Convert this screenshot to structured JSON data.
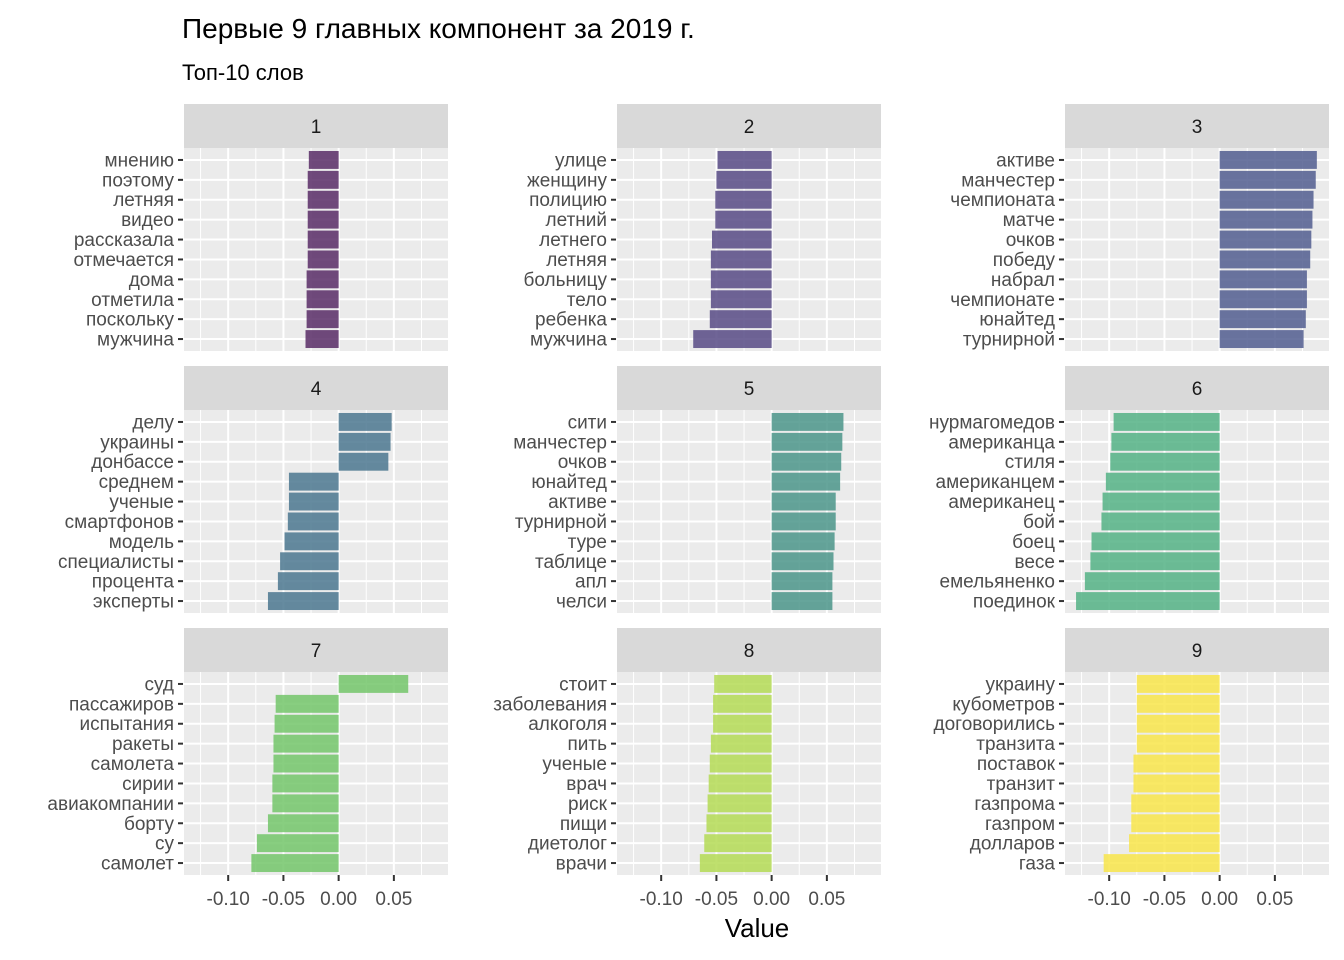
{
  "chart_data": {
    "type": "bar",
    "orientation": "horizontal",
    "title": "Первые 9 главных компонент за 2019 г.",
    "subtitle": "Топ-10 слов",
    "xlabel": "Value",
    "ylabel": "",
    "xlim": [
      -0.14,
      0.099
    ],
    "x_ticks": [
      -0.1,
      -0.05,
      0.0,
      0.05
    ],
    "x_tick_labels": [
      "-0.10",
      "-0.05",
      "0.00",
      "0.05"
    ],
    "grid": true,
    "legend": "none",
    "facets": [
      {
        "label": "1",
        "color": "#582c66",
        "categories": [
          "мнению",
          "поэтому",
          "летняя",
          "видео",
          "рассказала",
          "отмечается",
          "дома",
          "отметила",
          "поскольку",
          "мужчина"
        ],
        "values": [
          -0.027,
          -0.028,
          -0.028,
          -0.028,
          -0.028,
          -0.028,
          -0.029,
          -0.029,
          -0.029,
          -0.03
        ]
      },
      {
        "label": "2",
        "color": "#574a85",
        "categories": [
          "улице",
          "женщину",
          "полицию",
          "летний",
          "летнего",
          "летняя",
          "больницу",
          "тело",
          "ребенка",
          "мужчина"
        ],
        "values": [
          -0.049,
          -0.05,
          -0.051,
          -0.051,
          -0.054,
          -0.055,
          -0.055,
          -0.055,
          -0.056,
          -0.071
        ]
      },
      {
        "label": "3",
        "color": "#515d8f",
        "categories": [
          "активе",
          "манчестер",
          "чемпионата",
          "матче",
          "очков",
          "победу",
          "набрал",
          "чемпионате",
          "юнайтед",
          "турнирной"
        ],
        "values": [
          0.088,
          0.087,
          0.085,
          0.084,
          0.083,
          0.082,
          0.079,
          0.079,
          0.078,
          0.076
        ]
      },
      {
        "label": "4",
        "color": "#4b778f",
        "categories": [
          "делу",
          "украины",
          "донбассе",
          "среднем",
          "ученые",
          "смартфонов",
          "модель",
          "специалисты",
          "процента",
          "эксперты"
        ],
        "values": [
          0.048,
          0.047,
          0.045,
          -0.045,
          -0.045,
          -0.046,
          -0.049,
          -0.053,
          -0.055,
          -0.064
        ]
      },
      {
        "label": "5",
        "color": "#4b958a",
        "categories": [
          "сити",
          "манчестер",
          "очков",
          "юнайтед",
          "активе",
          "турнирной",
          "туре",
          "таблице",
          "апл",
          "челси"
        ],
        "values": [
          0.065,
          0.064,
          0.063,
          0.062,
          0.058,
          0.058,
          0.057,
          0.056,
          0.055,
          0.055
        ]
      },
      {
        "label": "6",
        "color": "#53b185",
        "categories": [
          "нурмагомедов",
          "американца",
          "стиля",
          "американцем",
          "американец",
          "бой",
          "боец",
          "весе",
          "емельяненко",
          "поединок"
        ],
        "values": [
          -0.096,
          -0.098,
          -0.099,
          -0.103,
          -0.106,
          -0.107,
          -0.116,
          -0.117,
          -0.122,
          -0.13
        ]
      },
      {
        "label": "7",
        "color": "#73c56a",
        "categories": [
          "суд",
          "пассажиров",
          "испытания",
          "ракеты",
          "самолета",
          "сирии",
          "авиакомпании",
          "борту",
          "су",
          "самолет"
        ],
        "values": [
          0.063,
          -0.057,
          -0.058,
          -0.059,
          -0.059,
          -0.06,
          -0.06,
          -0.064,
          -0.074,
          -0.079
        ]
      },
      {
        "label": "8",
        "color": "#b4da55",
        "categories": [
          "стоит",
          "заболевания",
          "алкоголя",
          "пить",
          "ученые",
          "врач",
          "риск",
          "пищи",
          "диетолог",
          "врачи"
        ],
        "values": [
          -0.052,
          -0.053,
          -0.053,
          -0.055,
          -0.056,
          -0.057,
          -0.058,
          -0.059,
          -0.061,
          -0.065
        ]
      },
      {
        "label": "9",
        "color": "#f8e54a",
        "categories": [
          "украину",
          "кубометров",
          "договорились",
          "транзита",
          "поставок",
          "транзит",
          "газпрома",
          "газпром",
          "долларов",
          "газа"
        ],
        "values": [
          -0.075,
          -0.075,
          -0.075,
          -0.075,
          -0.078,
          -0.078,
          -0.08,
          -0.08,
          -0.082,
          -0.105
        ]
      }
    ]
  }
}
